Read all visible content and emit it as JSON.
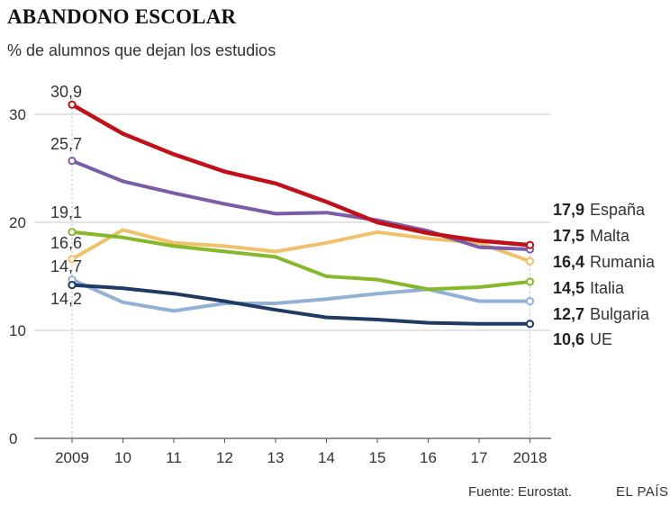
{
  "header": {
    "title": "ABANDONO ESCOLAR",
    "subtitle": "% de alumnos que dejan los estudios"
  },
  "footer": {
    "source": "Fuente: Eurostat.",
    "brand": "EL PAÍS"
  },
  "chart_data": {
    "type": "line",
    "title": "ABANDONO ESCOLAR",
    "subtitle": "% de alumnos que dejan los estudios",
    "xlabel": "",
    "ylabel": "",
    "x": [
      "2009",
      "10",
      "11",
      "12",
      "13",
      "14",
      "15",
      "16",
      "17",
      "2018"
    ],
    "ylim": [
      0,
      32
    ],
    "yticks": [
      0,
      10,
      20,
      30
    ],
    "grid": true,
    "series": [
      {
        "name": "España",
        "color": "#c0101a",
        "values": [
          30.9,
          28.2,
          26.3,
          24.7,
          23.6,
          21.9,
          20.0,
          19.0,
          18.3,
          17.9
        ],
        "start_label": "30,9",
        "end_label": "17,9"
      },
      {
        "name": "Malta",
        "color": "#7a5ca8",
        "values": [
          25.7,
          23.8,
          22.7,
          21.7,
          20.8,
          20.9,
          20.2,
          19.2,
          17.7,
          17.5
        ],
        "start_label": "25,7",
        "end_label": "17,5"
      },
      {
        "name": "Rumania",
        "color": "#f0c06a",
        "values": [
          16.6,
          19.3,
          18.1,
          17.8,
          17.3,
          18.1,
          19.1,
          18.5,
          18.1,
          16.4
        ],
        "start_label": "16,6",
        "end_label": "16,4"
      },
      {
        "name": "Italia",
        "color": "#86b82c",
        "values": [
          19.1,
          18.6,
          17.8,
          17.3,
          16.8,
          15.0,
          14.7,
          13.8,
          14.0,
          14.5
        ],
        "start_label": "19,1",
        "end_label": "14,5"
      },
      {
        "name": "Bulgaria",
        "color": "#93b0d6",
        "values": [
          14.7,
          12.6,
          11.8,
          12.5,
          12.5,
          12.9,
          13.4,
          13.8,
          12.7,
          12.7
        ],
        "start_label": "14,7",
        "end_label": "12,7"
      },
      {
        "name": "UE",
        "color": "#1f3b63",
        "values": [
          14.2,
          13.9,
          13.4,
          12.7,
          11.9,
          11.2,
          11.0,
          10.7,
          10.6,
          10.6
        ],
        "start_label": "14,2",
        "end_label": "10,6"
      }
    ]
  }
}
